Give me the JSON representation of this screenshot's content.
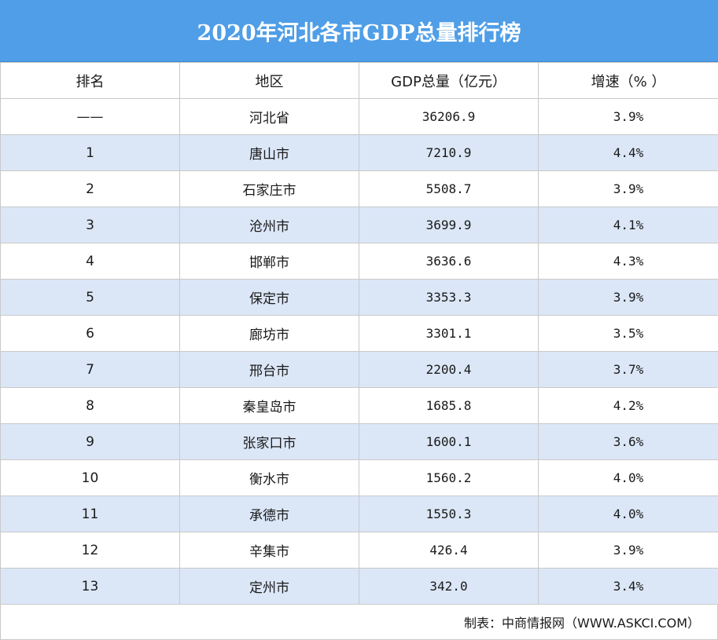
{
  "title": "2020年河北各市GDP总量排行榜",
  "headers": [
    "排名",
    "地区",
    "GDP总量（亿元）",
    "增速（% ）"
  ],
  "rows": [
    {
      "rank": "——",
      "region": "河北省",
      "gdp": "36206.9",
      "growth": "3.9%"
    },
    {
      "rank": "1",
      "region": "唐山市",
      "gdp": "7210.9",
      "growth": "4.4%"
    },
    {
      "rank": "2",
      "region": "石家庄市",
      "gdp": "5508.7",
      "growth": "3.9%"
    },
    {
      "rank": "3",
      "region": "沧州市",
      "gdp": "3699.9",
      "growth": "4.1%"
    },
    {
      "rank": "4",
      "region": "邯郸市",
      "gdp": "3636.6",
      "growth": "4.3%"
    },
    {
      "rank": "5",
      "region": "保定市",
      "gdp": "3353.3",
      "growth": "3.9%"
    },
    {
      "rank": "6",
      "region": "廊坊市",
      "gdp": "3301.1",
      "growth": "3.5%"
    },
    {
      "rank": "7",
      "region": "邢台市",
      "gdp": "2200.4",
      "growth": "3.7%"
    },
    {
      "rank": "8",
      "region": "秦皇岛市",
      "gdp": "1685.8",
      "growth": "4.2%"
    },
    {
      "rank": "9",
      "region": "张家口市",
      "gdp": "1600.1",
      "growth": "3.6%"
    },
    {
      "rank": "10",
      "region": "衡水市",
      "gdp": "1560.2",
      "growth": "4.0%"
    },
    {
      "rank": "11",
      "region": "承德市",
      "gdp": "1550.3",
      "growth": "4.0%"
    },
    {
      "rank": "12",
      "region": "辛集市",
      "gdp": "426.4",
      "growth": "3.9%"
    },
    {
      "rank": "13",
      "region": "定州市",
      "gdp": "342.0",
      "growth": "3.4%"
    }
  ],
  "footer": "制表：中商情报网（WWW.ASKCI.COM）",
  "colors": {
    "title_bg": "#4f9ee7",
    "stripe": "#dbe7f7",
    "border": "#c9c9c9"
  }
}
